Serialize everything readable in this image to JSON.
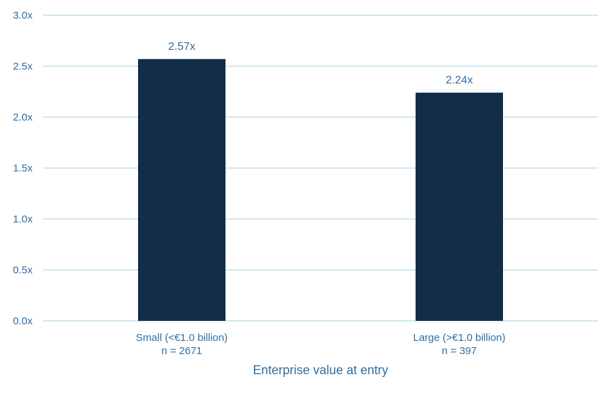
{
  "chart_data": {
    "type": "bar",
    "categories": [
      "Small (<€1.0 billion)",
      "Large (>€1.0 billion)"
    ],
    "category_sublabels": [
      "n = 2671",
      "n = 397"
    ],
    "values": [
      2.57,
      2.24
    ],
    "data_labels": [
      "2.57x",
      "2.24x"
    ],
    "title": "",
    "xlabel": "Enterprise value at entry",
    "ylabel": "",
    "ylim": [
      0,
      3.0
    ],
    "yticks": [
      0,
      0.5,
      1.0,
      1.5,
      2.0,
      2.5,
      3.0
    ],
    "ytick_labels": [
      "0.0x",
      "0.5x",
      "1.0x",
      "1.5x",
      "2.0x",
      "2.5x",
      "3.0x"
    ],
    "grid": true,
    "legend": "none",
    "colors": {
      "bar": "#112d48",
      "grid": "#bfe0ec",
      "text": "#2f6da3"
    }
  }
}
